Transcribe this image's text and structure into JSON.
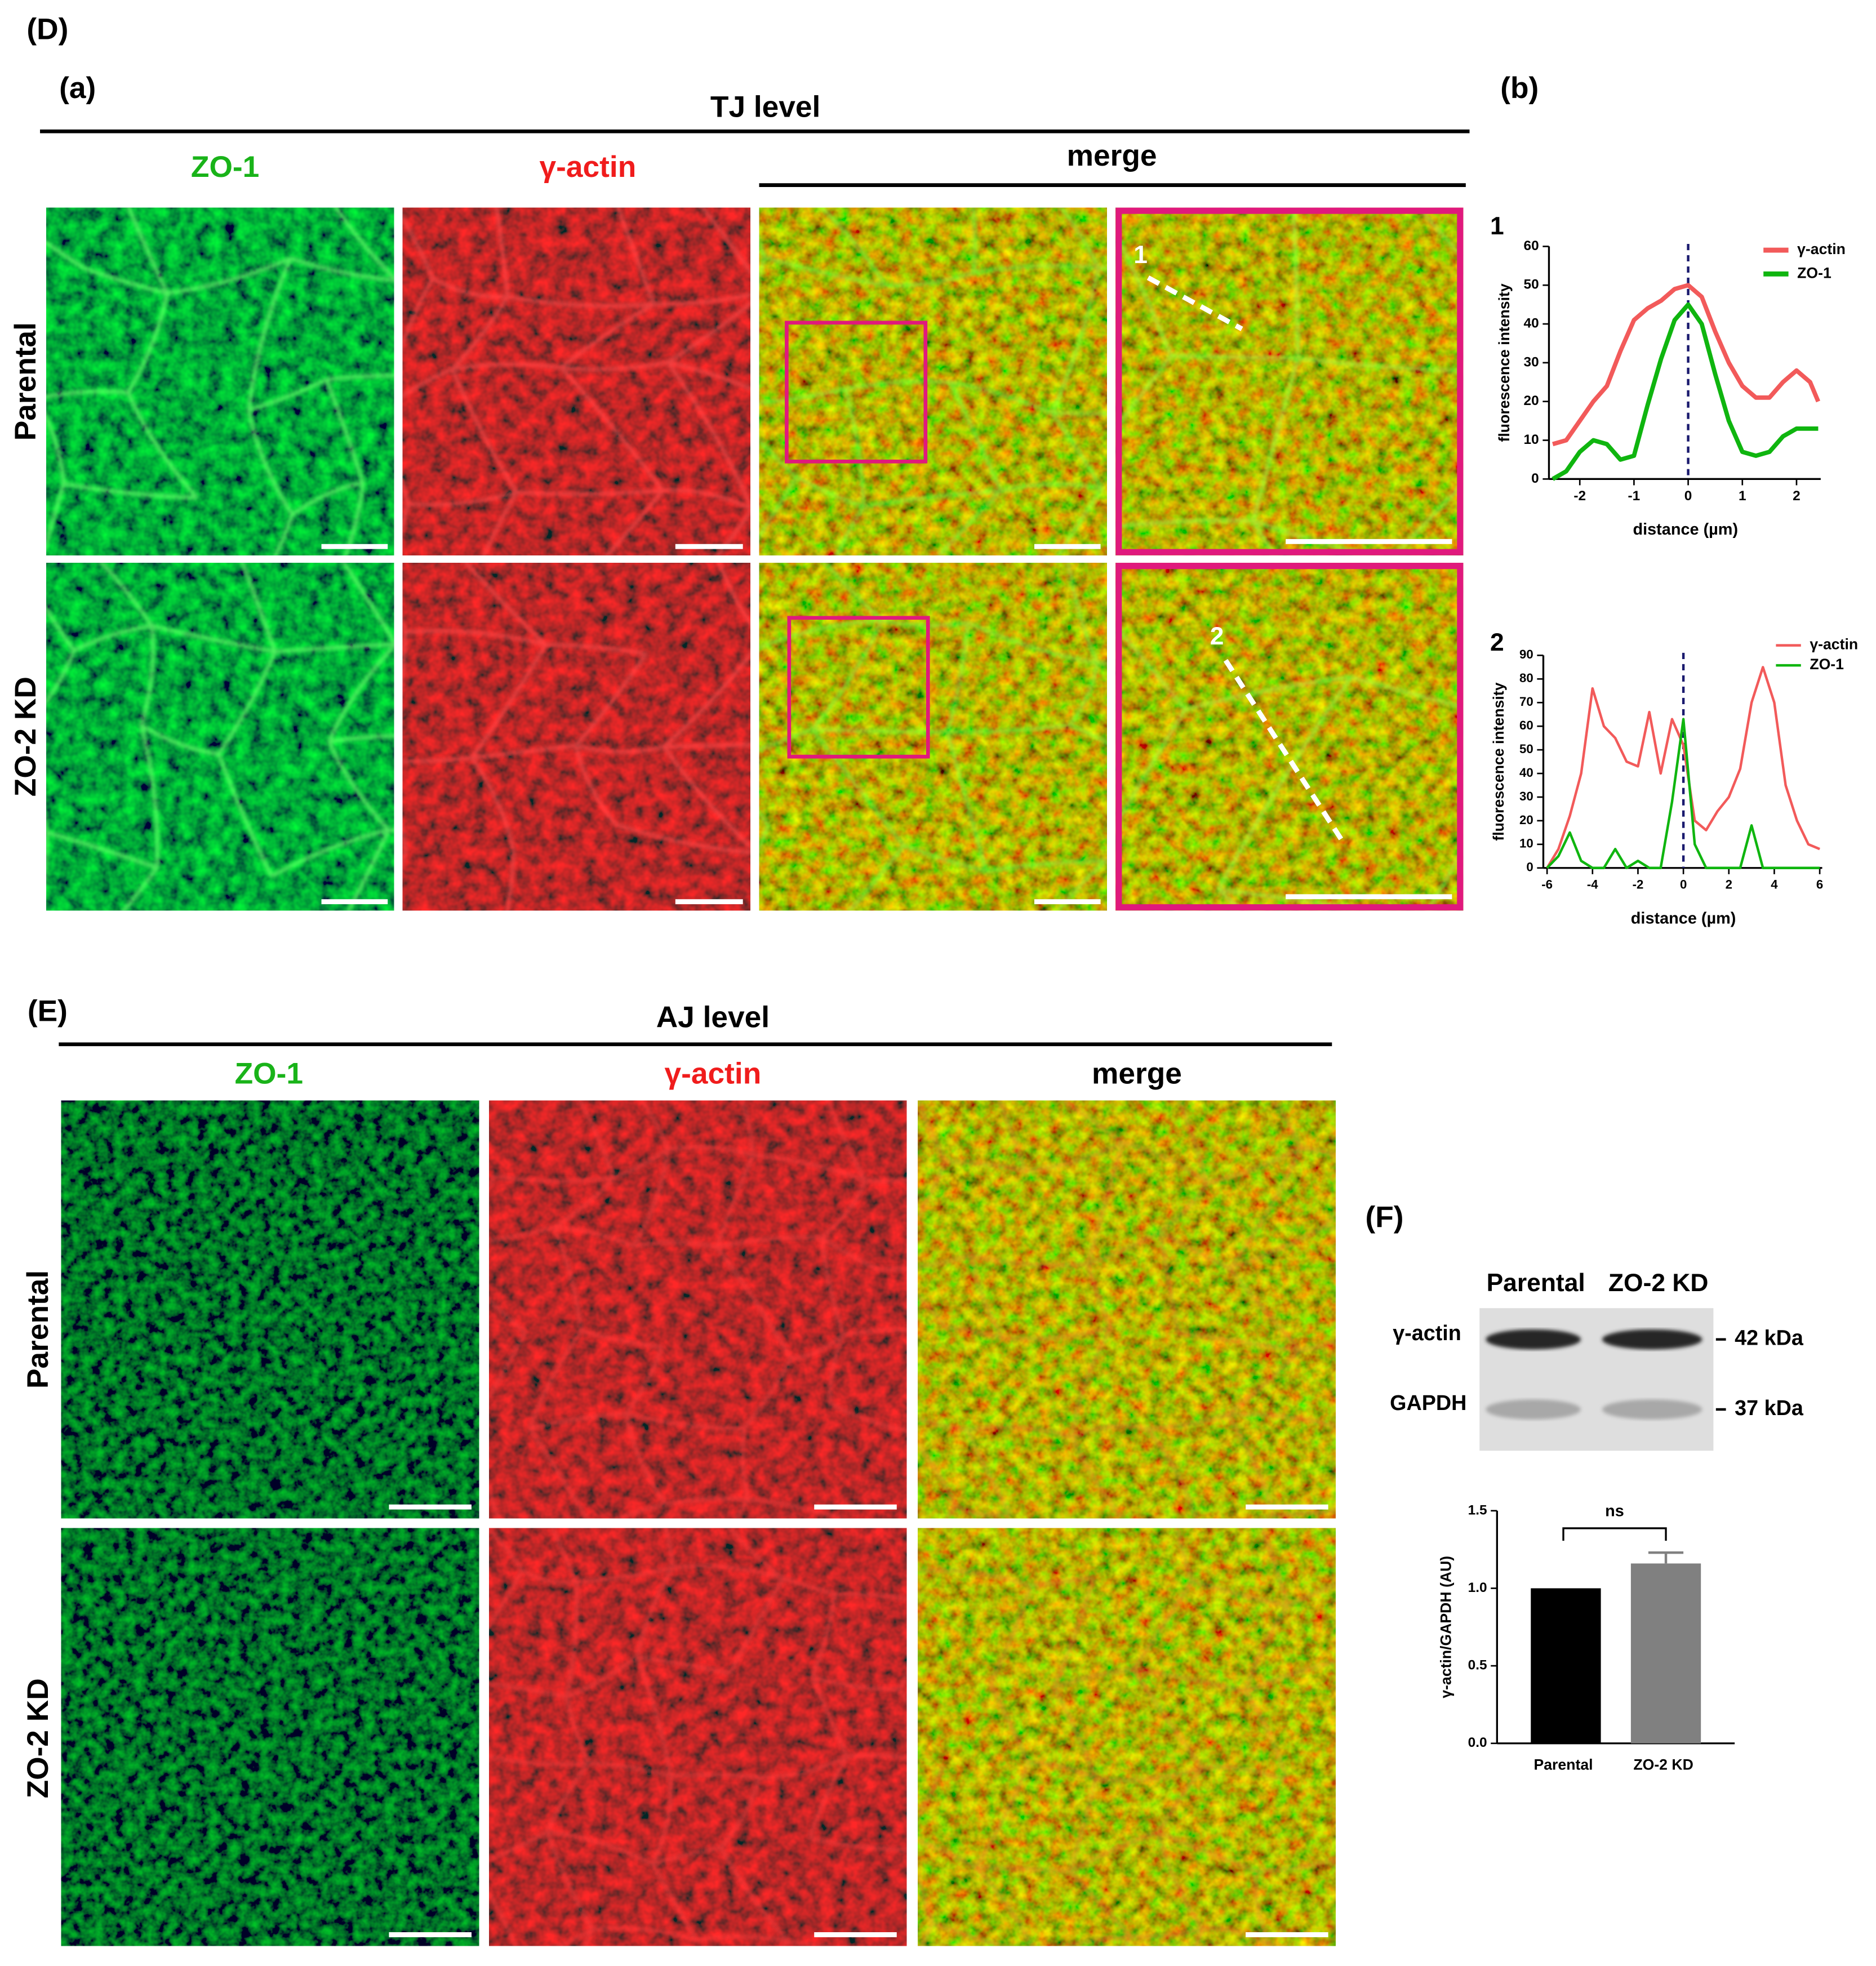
{
  "panels": {
    "D": "(D)",
    "a": "(a)",
    "b": "(b)",
    "E": "(E)",
    "F": "(F)"
  },
  "tj": {
    "title": "TJ level",
    "merge_header": "merge",
    "columns": [
      "ZO-1",
      "γ-actin"
    ],
    "rows": [
      "Parental",
      "ZO-2 KD"
    ],
    "line_labels": [
      "1",
      "2"
    ]
  },
  "aj": {
    "title": "AJ level",
    "columns": [
      "ZO-1",
      "γ-actin",
      "merge"
    ],
    "rows": [
      "Parental",
      "ZO-2 KD"
    ]
  },
  "blot": {
    "lanes": [
      "Parental",
      "ZO-2 KD"
    ],
    "bands": [
      "γ-actin",
      "GAPDH"
    ],
    "markers": [
      "42 kDa",
      "37 kDa"
    ]
  },
  "chart_data": [
    {
      "type": "line",
      "label": "1",
      "xlabel": "distance (µm)",
      "ylabel": "fluorescence intensity",
      "x": [
        -2.5,
        -2.25,
        -2,
        -1.75,
        -1.5,
        -1.25,
        -1,
        -0.75,
        -0.5,
        -0.25,
        0,
        0.25,
        0.5,
        0.75,
        1,
        1.25,
        1.5,
        1.75,
        2,
        2.25,
        2.4
      ],
      "series": [
        {
          "name": "γ-actin",
          "color": "#f25a5a",
          "values": [
            9,
            10,
            15,
            20,
            24,
            33,
            41,
            44,
            46,
            49,
            50,
            47,
            38,
            30,
            24,
            21,
            21,
            25,
            28,
            25,
            20
          ]
        },
        {
          "name": "ZO-1",
          "color": "#0fb50f",
          "values": [
            0,
            2,
            7,
            10,
            9,
            5,
            6,
            19,
            31,
            41,
            45,
            40,
            27,
            15,
            7,
            6,
            7,
            11,
            13,
            13,
            13
          ]
        }
      ],
      "xlim": [
        -2.5,
        2.4
      ],
      "ylim": [
        0,
        60
      ],
      "xticks": [
        -2,
        -1,
        0,
        1,
        2
      ],
      "yticks": [
        0,
        10,
        20,
        30,
        40,
        50,
        60
      ],
      "vline": 0
    },
    {
      "type": "line",
      "label": "2",
      "xlabel": "distance (µm)",
      "ylabel": "fluorescence intensity",
      "x": [
        -6,
        -5.5,
        -5,
        -4.5,
        -4,
        -3.5,
        -3,
        -2.5,
        -2,
        -1.5,
        -1,
        -0.5,
        0,
        0.5,
        1,
        1.5,
        2,
        2.5,
        3,
        3.5,
        4,
        4.5,
        5,
        5.5,
        6
      ],
      "series": [
        {
          "name": "γ-actin",
          "color": "#f25a5a",
          "values": [
            0,
            8,
            22,
            40,
            76,
            60,
            55,
            45,
            43,
            66,
            40,
            63,
            52,
            20,
            16,
            24,
            30,
            42,
            70,
            85,
            70,
            35,
            20,
            10,
            8
          ]
        },
        {
          "name": "ZO-1",
          "color": "#0fb50f",
          "values": [
            0,
            5,
            15,
            3,
            0,
            0,
            8,
            0,
            3,
            0,
            0,
            28,
            63,
            10,
            0,
            0,
            0,
            0,
            18,
            0,
            0,
            0,
            0,
            0,
            0
          ]
        }
      ],
      "xlim": [
        -6,
        6
      ],
      "ylim": [
        0,
        90
      ],
      "xticks": [
        -6,
        -4,
        -2,
        0,
        2,
        4,
        6
      ],
      "yticks": [
        0,
        10,
        20,
        30,
        40,
        50,
        60,
        70,
        80,
        90
      ],
      "vline": 0
    },
    {
      "type": "bar",
      "ylabel": "γ-actin/GAPDH (AU)",
      "categories": [
        "Parental",
        "ZO-2 KD"
      ],
      "values": [
        1.0,
        1.16
      ],
      "errors": [
        null,
        0.07
      ],
      "colors": [
        "#000000",
        "#808080"
      ],
      "ylim": [
        0,
        1.5
      ],
      "yticks": [
        {
          "value": 0,
          "label": "0.0"
        },
        0.5,
        {
          "value": 1,
          "label": "1.0"
        },
        1.5
      ],
      "annotation": "ns"
    }
  ]
}
